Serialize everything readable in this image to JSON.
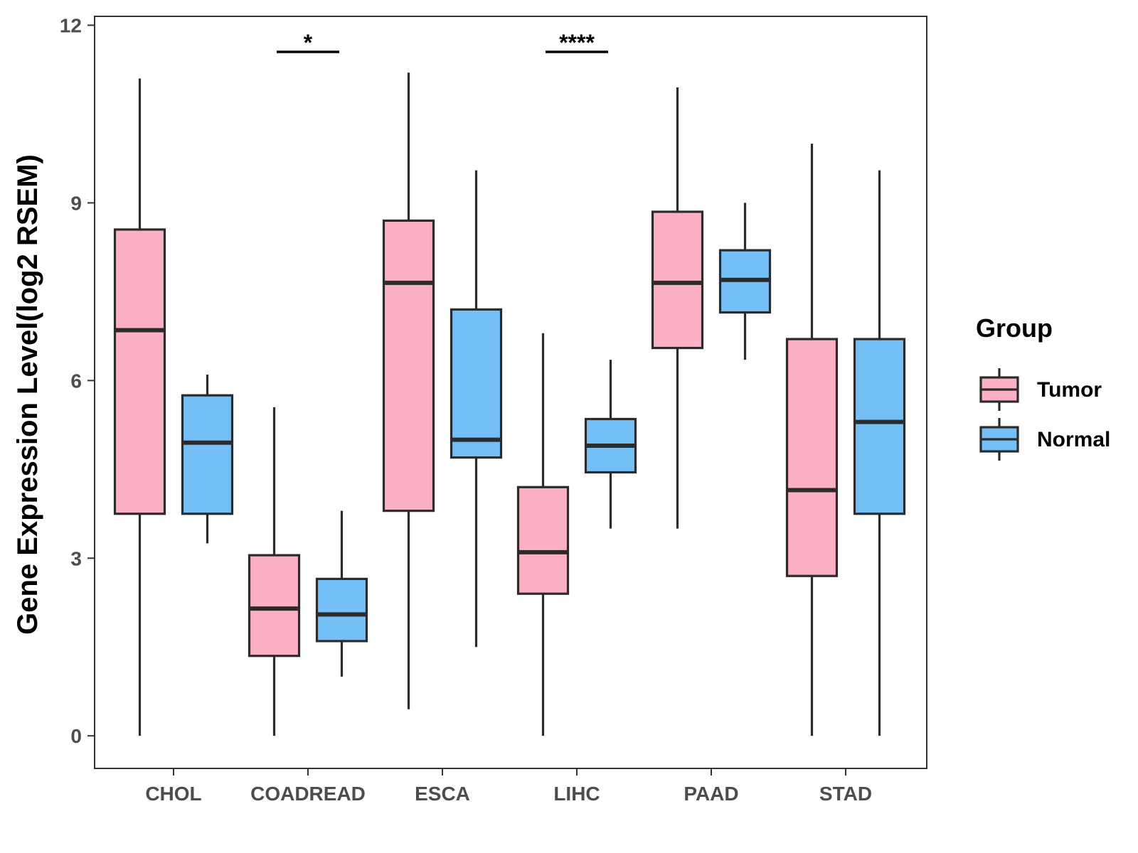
{
  "chart_data": {
    "type": "boxplot",
    "title": "",
    "xlabel": "",
    "ylabel": "Gene Expression Level(log2 RSEM)",
    "ylim": [
      -0.55,
      12.15
    ],
    "yticks": [
      0,
      3,
      6,
      9,
      12
    ],
    "grid": false,
    "categories": [
      "CHOL",
      "COADREAD",
      "ESCA",
      "LIHC",
      "PAAD",
      "STAD"
    ],
    "legend": {
      "title": "Group",
      "position": "right",
      "entries": [
        {
          "name": "Tumor",
          "color": "#FBB1C3"
        },
        {
          "name": "Normal",
          "color": "#75BFF7"
        }
      ]
    },
    "series": [
      {
        "name": "Tumor",
        "color": "#FBB1C3",
        "boxes": [
          {
            "category": "CHOL",
            "min": 0.0,
            "q1": 3.75,
            "median": 6.85,
            "q3": 8.55,
            "max": 11.1
          },
          {
            "category": "COADREAD",
            "min": 0.0,
            "q1": 1.35,
            "median": 2.15,
            "q3": 3.05,
            "max": 5.55
          },
          {
            "category": "ESCA",
            "min": 0.45,
            "q1": 3.8,
            "median": 7.65,
            "q3": 8.7,
            "max": 11.2
          },
          {
            "category": "LIHC",
            "min": 0.0,
            "q1": 2.4,
            "median": 3.1,
            "q3": 4.2,
            "max": 6.8
          },
          {
            "category": "PAAD",
            "min": 3.5,
            "q1": 6.55,
            "median": 7.65,
            "q3": 8.85,
            "max": 10.95
          },
          {
            "category": "STAD",
            "min": 0.0,
            "q1": 2.7,
            "median": 4.15,
            "q3": 6.7,
            "max": 10.0
          }
        ]
      },
      {
        "name": "Normal",
        "color": "#75BFF7",
        "boxes": [
          {
            "category": "CHOL",
            "min": 3.25,
            "q1": 3.75,
            "median": 4.95,
            "q3": 5.75,
            "max": 6.1
          },
          {
            "category": "COADREAD",
            "min": 1.0,
            "q1": 1.6,
            "median": 2.05,
            "q3": 2.65,
            "max": 3.8
          },
          {
            "category": "ESCA",
            "min": 1.5,
            "q1": 4.7,
            "median": 5.0,
            "q3": 7.2,
            "max": 9.55
          },
          {
            "category": "LIHC",
            "min": 3.5,
            "q1": 4.45,
            "median": 4.9,
            "q3": 5.35,
            "max": 6.35
          },
          {
            "category": "PAAD",
            "min": 6.35,
            "q1": 7.15,
            "median": 7.7,
            "q3": 8.2,
            "max": 9.0
          },
          {
            "category": "STAD",
            "min": 0.0,
            "q1": 3.75,
            "median": 5.3,
            "q3": 6.7,
            "max": 9.55
          }
        ]
      }
    ],
    "annotations": [
      {
        "category": "COADREAD",
        "label": "*",
        "y": 11.55
      },
      {
        "category": "LIHC",
        "label": "****",
        "y": 11.55
      }
    ]
  }
}
